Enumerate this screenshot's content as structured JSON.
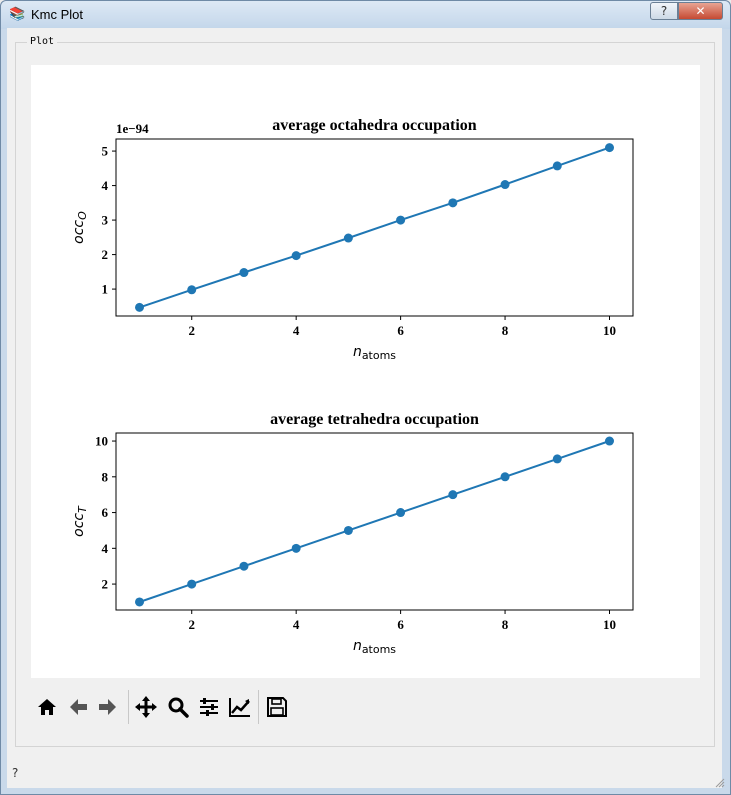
{
  "window": {
    "title": "Kmc Plot",
    "help_button": "?",
    "close_button": "✕"
  },
  "groupbox": {
    "title": "Plot"
  },
  "toolbar": {
    "tools": [
      {
        "name": "home-icon",
        "tooltip": "Home"
      },
      {
        "name": "back-icon",
        "tooltip": "Back"
      },
      {
        "name": "forward-icon",
        "tooltip": "Forward"
      },
      {
        "name": "pan-icon",
        "tooltip": "Pan"
      },
      {
        "name": "zoom-icon",
        "tooltip": "Zoom"
      },
      {
        "name": "subplots-icon",
        "tooltip": "Subplots"
      },
      {
        "name": "customize-icon",
        "tooltip": "Customize"
      },
      {
        "name": "save-icon",
        "tooltip": "Save"
      }
    ]
  },
  "status": {
    "help_glyph": "?"
  },
  "colors": {
    "series": "#1f77b4",
    "figure_bg": "#ffffff",
    "window_bg": "#f0f0f0"
  },
  "chart_data": [
    {
      "type": "line",
      "title": "average octahedra occupation",
      "xlabel": "n",
      "xlabel_sub": "atoms",
      "ylabel": "occ",
      "ylabel_sub": "O",
      "offset_text": "1e−94",
      "x": [
        1,
        2,
        3,
        4,
        5,
        6,
        7,
        8,
        9,
        10
      ],
      "y": [
        0.47,
        0.98,
        1.48,
        1.97,
        2.48,
        3.0,
        3.5,
        4.03,
        4.57,
        5.1
      ],
      "xlim": [
        0.55,
        10.45
      ],
      "ylim": [
        0.22,
        5.35
      ],
      "xticks": [
        2,
        4,
        6,
        8,
        10
      ],
      "yticks": [
        1,
        2,
        3,
        4,
        5
      ],
      "grid": false,
      "marker": "circle"
    },
    {
      "type": "line",
      "title": "average tetrahedra occupation",
      "xlabel": "n",
      "xlabel_sub": "atoms",
      "ylabel": "occ",
      "ylabel_sub": "T",
      "offset_text": "",
      "x": [
        1,
        2,
        3,
        4,
        5,
        6,
        7,
        8,
        9,
        10
      ],
      "y": [
        1,
        2,
        3,
        4,
        5,
        6,
        7,
        8,
        9,
        10
      ],
      "xlim": [
        0.55,
        10.45
      ],
      "ylim": [
        0.55,
        10.45
      ],
      "xticks": [
        2,
        4,
        6,
        8,
        10
      ],
      "yticks": [
        2,
        4,
        6,
        8,
        10
      ],
      "grid": false,
      "marker": "circle"
    }
  ]
}
